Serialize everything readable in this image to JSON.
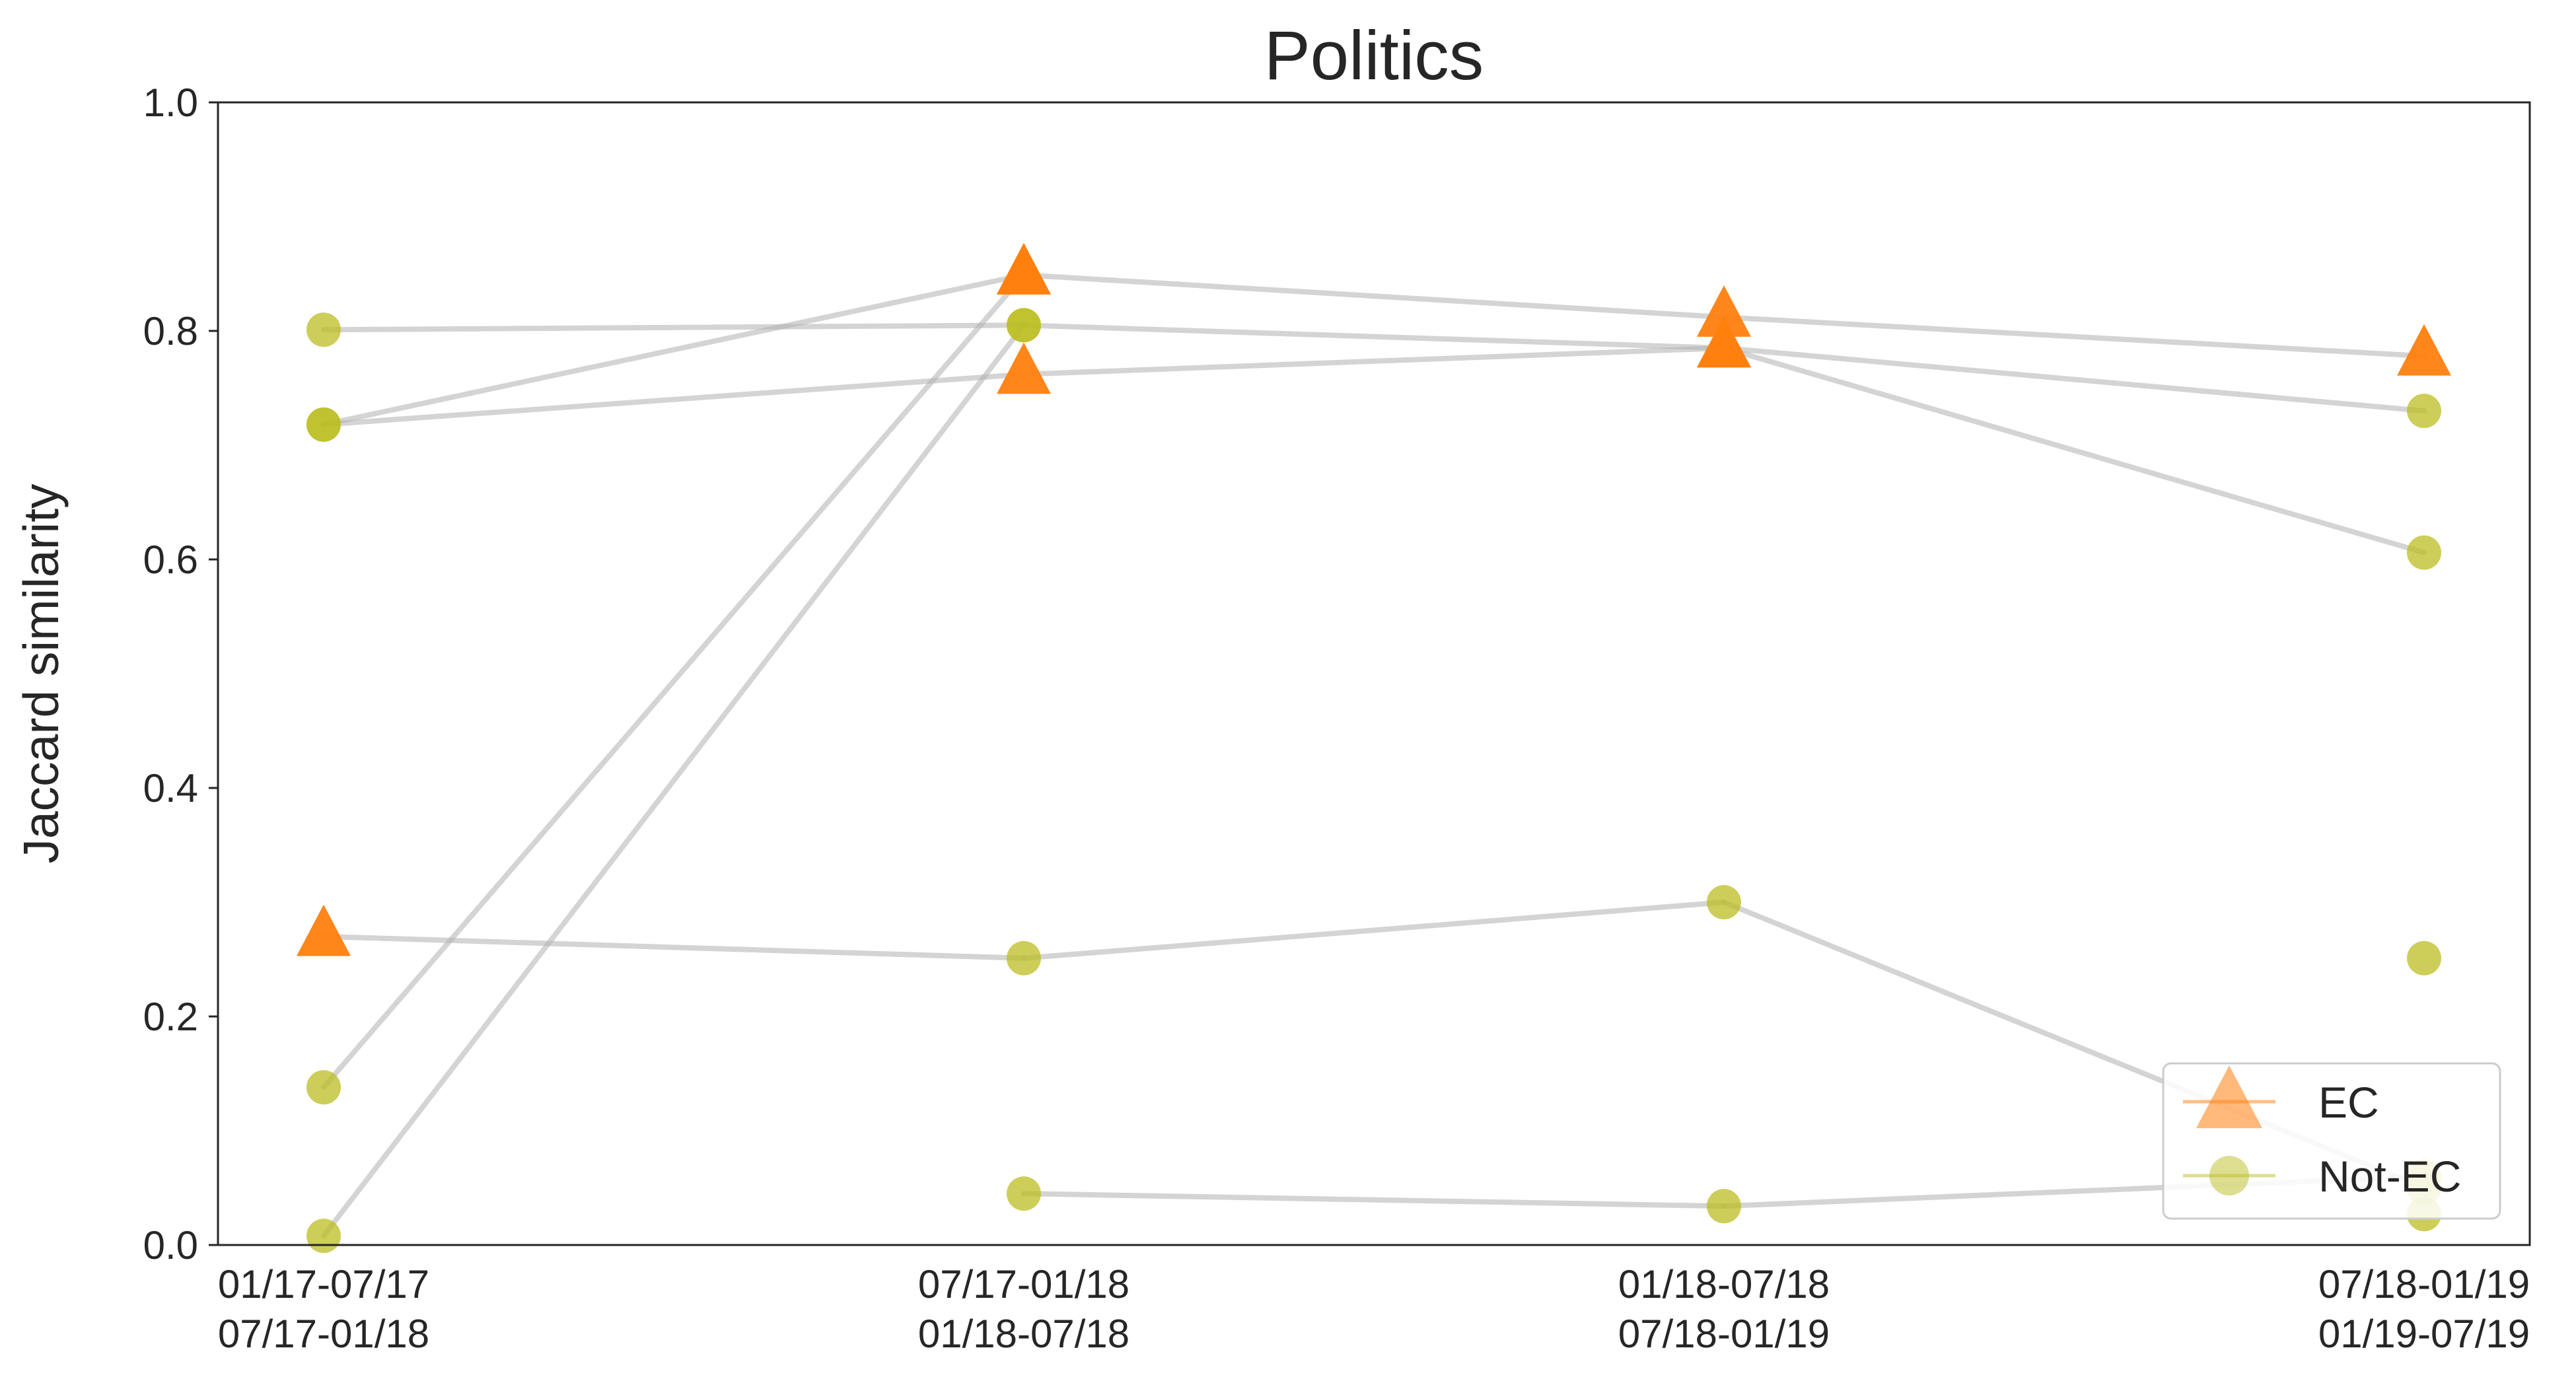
{
  "chart_data": {
    "type": "line",
    "title": "Politics",
    "ylabel": "Jaccard similarity",
    "xlabel": "",
    "ylim": [
      0,
      1
    ],
    "yticks": [
      "0.0",
      "0.2",
      "0.4",
      "0.6",
      "0.8",
      "1.0"
    ],
    "categories": [
      [
        "01/17-07/17",
        "07/17-01/18"
      ],
      [
        "07/17-01/18",
        "01/18-07/18"
      ],
      [
        "01/18-07/18",
        "07/18-01/19"
      ],
      [
        "07/18-01/19",
        "01/19-07/19"
      ]
    ],
    "grid": false,
    "legend": {
      "position": "lower-right",
      "entries": [
        {
          "label": "EC",
          "marker": "triangle",
          "color": "#ff7f0e"
        },
        {
          "label": "Not-EC",
          "marker": "circle",
          "color": "#bcbd22"
        }
      ]
    },
    "colors": {
      "ec": "#ff7f0e",
      "not_ec": "#bcbd22",
      "line": "#b0b0b0",
      "axis": "#262626"
    },
    "series": [
      {
        "status": [
          "Not-EC",
          "EC",
          "EC",
          "Not-EC"
        ],
        "values": [
          0.718,
          0.762,
          0.785,
          0.73
        ]
      },
      {
        "status": [
          "Not-EC",
          "EC",
          "EC",
          "EC"
        ],
        "values": [
          0.718,
          0.849,
          0.812,
          0.778
        ]
      },
      {
        "status": [
          "Not-EC",
          "Not-EC",
          "EC",
          "Not-EC"
        ],
        "values": [
          0.801,
          0.805,
          0.785,
          0.606
        ]
      },
      {
        "status": [
          "EC",
          "Not-EC",
          "Not-EC",
          "Not-EC"
        ],
        "values": [
          0.27,
          0.251,
          0.3,
          0.05
        ]
      },
      {
        "status": [
          "Not-EC",
          "Not-EC",
          "Not-EC",
          "Not-EC"
        ],
        "values": [
          null,
          0.045,
          0.034,
          0.06
        ]
      },
      {
        "status": [
          "Not-EC",
          "EC",
          null,
          null
        ],
        "values": [
          0.138,
          0.849,
          null,
          null
        ]
      },
      {
        "status": [
          "Not-EC",
          "Not-EC",
          null,
          null
        ],
        "values": [
          0.008,
          0.805,
          null,
          null
        ]
      },
      {
        "status": [
          null,
          null,
          null,
          "Not-EC"
        ],
        "values": [
          null,
          null,
          null,
          0.251
        ]
      },
      {
        "status": [
          null,
          null,
          null,
          "Not-EC"
        ],
        "values": [
          null,
          null,
          null,
          0.027
        ]
      }
    ]
  }
}
